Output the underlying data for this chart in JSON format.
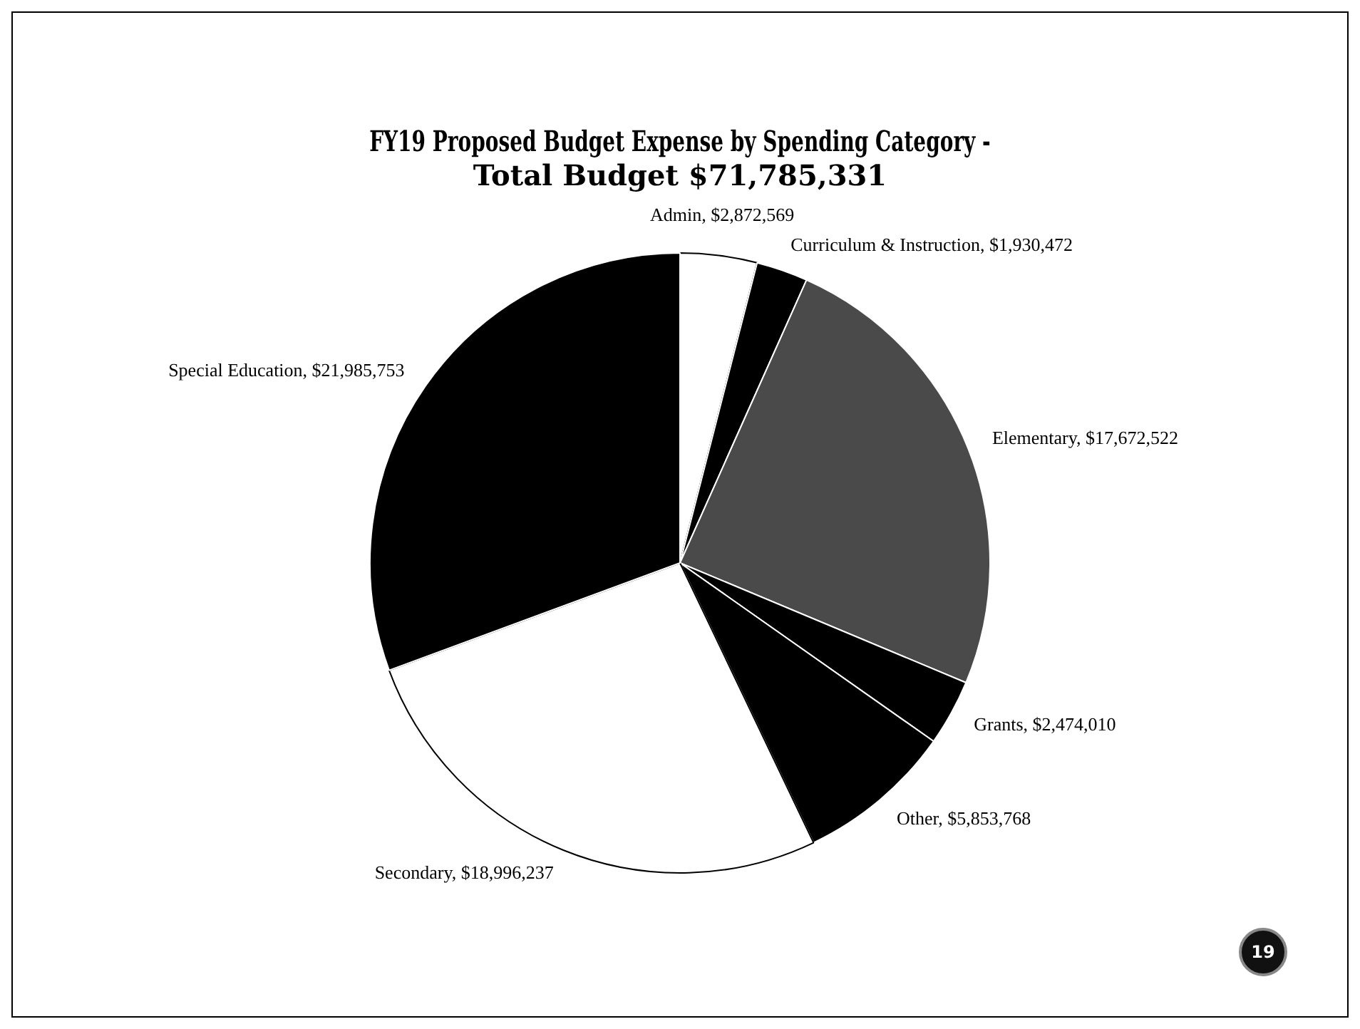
{
  "chart_data": {
    "type": "pie",
    "title": "FY19 Proposed Budget Expense by Spending Category - Total Budget $71,785,331",
    "categories": [
      "Admin",
      "Curriculum & Instruction",
      "Elementary",
      "Grants",
      "Other",
      "Secondary",
      "Special Education"
    ],
    "values": [
      2872569,
      1930472,
      17672522,
      2474010,
      5853768,
      18996237,
      21985753
    ],
    "value_labels": [
      "$2,872,569",
      "$1,930,472",
      "$17,672,522",
      "$2,474,010",
      "$5,853,768",
      "$18,996,237",
      "$21,985,753"
    ],
    "colors": [
      "#ffffff",
      "#000000",
      "#4a4a4a",
      "#000000",
      "#000000",
      "#ffffff",
      "#000000"
    ],
    "legend": false,
    "annotations": [
      "19"
    ]
  }
}
